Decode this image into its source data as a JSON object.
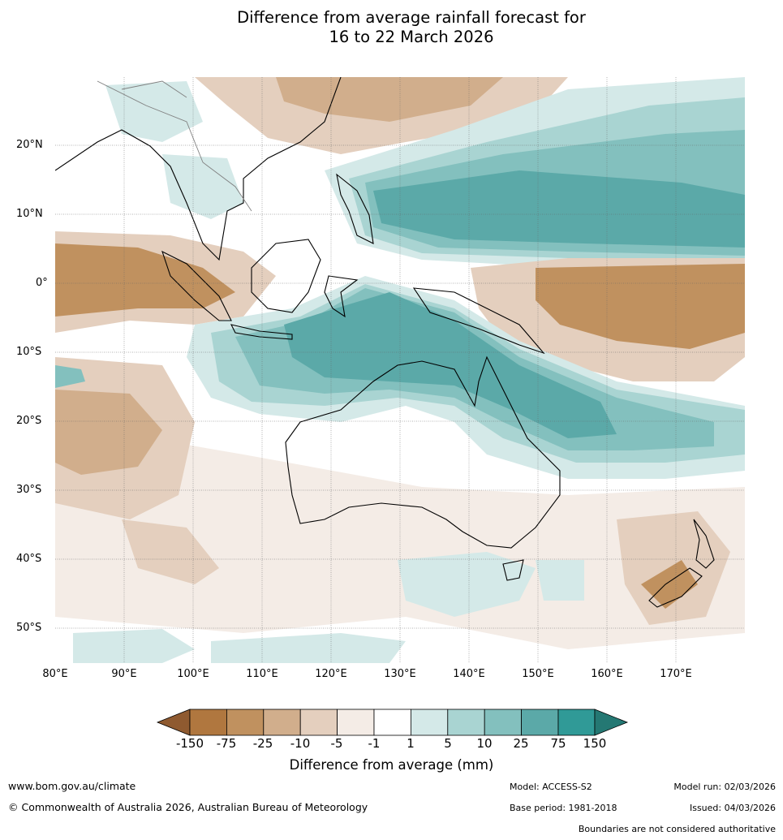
{
  "title_line1": "Difference from average rainfall forecast for",
  "title_line2": "16 to 22 March 2026",
  "lat_labels": [
    "20°N",
    "10°N",
    "0°",
    "10°S",
    "20°S",
    "30°S",
    "40°S",
    "50°S"
  ],
  "lon_labels": [
    "80°E",
    "90°E",
    "100°E",
    "110°E",
    "120°E",
    "130°E",
    "140°E",
    "150°E",
    "160°E",
    "170°E"
  ],
  "colorbar": {
    "ticks": [
      "-150",
      "-75",
      "-25",
      "-10",
      "-5",
      "-1",
      "1",
      "5",
      "10",
      "25",
      "75",
      "150"
    ],
    "colors": [
      "#8f5a30",
      "#b0773f",
      "#c0915f",
      "#d1ae8c",
      "#e4cfbe",
      "#f4ece6",
      "#ffffff",
      "#d4e9e8",
      "#a9d4d2",
      "#83c0be",
      "#5ba9a8",
      "#309a97",
      "#247873"
    ],
    "title": "Difference from average (mm)"
  },
  "footer": {
    "website": "www.bom.gov.au/climate",
    "copyright": "© Commonwealth of Australia 2026, Australian Bureau of Meteorology",
    "model": "Model: ACCESS-S2",
    "base_period": "Base period: 1981-2018",
    "model_run": "Model run: 02/03/2026",
    "issued": "Issued: 04/03/2026",
    "disclaimer": "Boundaries are not considered authoritative"
  }
}
